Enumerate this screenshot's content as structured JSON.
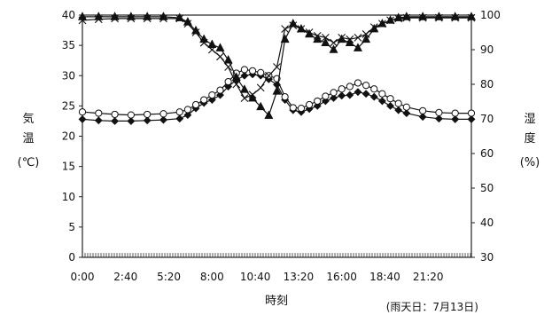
{
  "chart_data": {
    "type": "line",
    "title": "",
    "xlabel": "時刻",
    "ylabel_left": [
      "気",
      "温",
      "(℃)"
    ],
    "ylabel_right": [
      "湿",
      "度",
      "(%)"
    ],
    "note": "(雨天日：7月13日)",
    "xlim": [
      0,
      24
    ],
    "ylim_left": [
      0,
      40
    ],
    "ylim_right": [
      30,
      100
    ],
    "x_ticks": [
      {
        "x": 0,
        "label": "0:00"
      },
      {
        "x": 2.6667,
        "label": "2:40"
      },
      {
        "x": 5.3333,
        "label": "5:20"
      },
      {
        "x": 8,
        "label": "8:00"
      },
      {
        "x": 10.6667,
        "label": "10:40"
      },
      {
        "x": 13.3333,
        "label": "13:20"
      },
      {
        "x": 16,
        "label": "16:00"
      },
      {
        "x": 18.6667,
        "label": "18:40"
      },
      {
        "x": 21.3333,
        "label": "21:20"
      }
    ],
    "y_ticks_left": [
      "0",
      "5",
      "10",
      "15",
      "20",
      "25",
      "30",
      "35",
      "40"
    ],
    "y_ticks_right": [
      "30",
      "40",
      "50",
      "60",
      "70",
      "80",
      "90",
      "100"
    ],
    "grid": false,
    "series": [
      {
        "axis": "left",
        "marker": "diamond",
        "color": "#111111",
        "x": [
          0,
          1,
          2,
          3,
          4,
          5,
          6,
          6.5,
          7,
          7.5,
          8,
          8.5,
          9,
          9.5,
          10,
          10.5,
          11,
          11.5,
          12,
          12.5,
          13,
          13.5,
          14,
          14.5,
          15,
          15.5,
          16,
          16.5,
          17,
          17.5,
          18,
          18.5,
          19,
          19.5,
          20,
          21,
          22,
          23,
          24
        ],
        "values": [
          22.8,
          22.6,
          22.5,
          22.5,
          22.6,
          22.7,
          22.9,
          23.5,
          24.6,
          25.5,
          26.0,
          26.8,
          28.2,
          29.3,
          30.0,
          30.2,
          30.0,
          29.4,
          28.5,
          26.0,
          24.3,
          24.0,
          24.5,
          25.0,
          25.8,
          26.3,
          26.7,
          26.8,
          27.3,
          27.0,
          26.5,
          25.8,
          25.0,
          24.3,
          23.8,
          23.2,
          22.9,
          22.8,
          22.8
        ]
      },
      {
        "axis": "left",
        "marker": "circle",
        "color": "#111111",
        "x": [
          0,
          1,
          2,
          3,
          4,
          5,
          6,
          6.5,
          7,
          7.5,
          8,
          8.5,
          9,
          9.5,
          10,
          10.5,
          11,
          11.5,
          12,
          12.5,
          13,
          13.5,
          14,
          14.5,
          15,
          15.5,
          16,
          16.5,
          17,
          17.5,
          18,
          18.5,
          19,
          19.5,
          20,
          21,
          22,
          23,
          24
        ],
        "values": [
          24.0,
          23.8,
          23.6,
          23.5,
          23.6,
          23.7,
          24.0,
          24.4,
          25.2,
          26.0,
          26.8,
          27.6,
          29.0,
          30.4,
          31.0,
          30.8,
          30.5,
          30.0,
          29.5,
          26.5,
          24.7,
          24.6,
          25.2,
          25.8,
          26.6,
          27.2,
          27.8,
          28.2,
          28.8,
          28.4,
          27.8,
          27.0,
          26.2,
          25.4,
          24.8,
          24.2,
          23.9,
          23.8,
          23.8
        ]
      },
      {
        "axis": "right",
        "marker": "triangle",
        "color": "#111111",
        "x": [
          0,
          1,
          2,
          3,
          4,
          5,
          6,
          6.5,
          7,
          7.5,
          8,
          8.5,
          9,
          9.5,
          10,
          10.5,
          11,
          11.5,
          12,
          12.5,
          13,
          13.5,
          14,
          14.5,
          15,
          15.5,
          16,
          16.5,
          17,
          17.5,
          18,
          18.5,
          19,
          19.5,
          20,
          21,
          22,
          23,
          24
        ],
        "values": [
          99.5,
          99.5,
          99.5,
          99.5,
          99.5,
          99.5,
          99.2,
          98.0,
          95.5,
          93.0,
          91.5,
          90.5,
          87.0,
          82.0,
          78.5,
          76.0,
          73.5,
          71.0,
          78.0,
          93.0,
          97.5,
          96.0,
          94.5,
          93.0,
          92.0,
          90.0,
          93.0,
          92.0,
          90.5,
          93.0,
          96.0,
          97.5,
          98.5,
          99.2,
          99.5,
          99.5,
          99.5,
          99.5,
          99.5
        ]
      },
      {
        "axis": "right",
        "marker": "cross",
        "color": "#111111",
        "x": [
          0,
          1,
          2,
          3,
          4,
          5,
          6,
          6.5,
          7,
          7.5,
          8,
          8.5,
          9,
          9.5,
          10,
          10.5,
          11,
          11.5,
          12,
          12.5,
          13,
          13.5,
          14,
          14.5,
          15,
          15.5,
          16,
          16.5,
          17,
          17.5,
          18,
          18.5,
          19,
          19.5,
          20,
          21,
          22,
          23,
          24
        ],
        "values": [
          98.5,
          98.8,
          99.0,
          99.0,
          99.0,
          99.0,
          99.0,
          97.5,
          95.0,
          92.0,
          90.0,
          88.0,
          85.0,
          80.0,
          76.0,
          77.0,
          79.0,
          82.5,
          85.0,
          96.0,
          97.0,
          96.0,
          95.0,
          94.0,
          93.5,
          92.0,
          93.5,
          93.0,
          93.5,
          94.5,
          96.5,
          97.5,
          98.5,
          99.0,
          99.2,
          99.2,
          99.2,
          99.2,
          99.2
        ]
      }
    ]
  }
}
